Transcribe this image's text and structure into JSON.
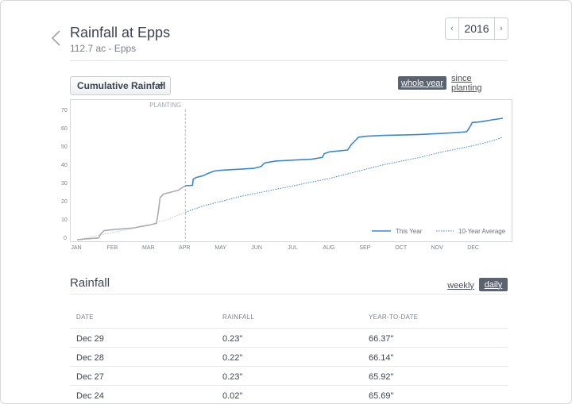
{
  "header": {
    "title": "Rainfall at Epps",
    "subtitle": "112.7 ac - Epps",
    "year": "2016",
    "prev_arrow": "‹",
    "next_arrow": "›"
  },
  "controls": {
    "metric_select": "Cumulative Rainfall",
    "range_options": [
      "whole year",
      "since planting"
    ],
    "range_selected": "whole year"
  },
  "chart_data": {
    "type": "line",
    "yticks": [
      0,
      10,
      20,
      30,
      40,
      50,
      60,
      70
    ],
    "ylim": [
      0,
      72
    ],
    "xticks": [
      "JAN",
      "FEB",
      "MAR",
      "APR",
      "MAY",
      "JUN",
      "JUL",
      "AUG",
      "SEP",
      "OCT",
      "NOV",
      "DEC"
    ],
    "annotation": "PLANTING",
    "planting_month": 3.0,
    "legend": [
      {
        "name": "This Year",
        "style": "solid",
        "color": "#3a86d6"
      },
      {
        "name": "10-Year Average",
        "style": "dotted",
        "color": "#3a86d6"
      }
    ],
    "pre_planting_color": "#a9acb1",
    "series": [
      {
        "name": "This Year",
        "x": [
          0,
          0.3,
          0.6,
          0.65,
          0.7,
          0.75,
          1.0,
          1.3,
          1.6,
          1.7,
          2.0,
          2.2,
          2.25,
          2.3,
          2.4,
          2.6,
          2.8,
          3.0,
          3.2,
          3.22,
          3.3,
          3.5,
          3.6,
          3.8,
          4.0,
          4.5,
          4.9,
          5.1,
          5.2,
          5.5,
          6.0,
          6.5,
          6.8,
          6.85,
          7.0,
          7.5,
          7.6,
          7.7,
          7.8,
          8.0,
          8.5,
          9.0,
          9.5,
          10.0,
          10.5,
          10.8,
          10.9,
          10.95,
          11.2,
          11.5,
          11.8
        ],
        "y": [
          0,
          0.5,
          1,
          3,
          4,
          5,
          5.5,
          6,
          6.5,
          7,
          8,
          9,
          15,
          23,
          25,
          26,
          27,
          29.5,
          29.7,
          33,
          34,
          35,
          36,
          37.5,
          38,
          38.5,
          39,
          40,
          42,
          43,
          43.5,
          44,
          45,
          47,
          48,
          49,
          52,
          54,
          56,
          56.5,
          57,
          57.2,
          57.5,
          58,
          58.5,
          59,
          62,
          64,
          64.5,
          65.5,
          66.37
        ]
      },
      {
        "name": "10-Year Average",
        "x": [
          0,
          0.5,
          1,
          1.5,
          2,
          2.5,
          3,
          3.5,
          4,
          4.5,
          5,
          5.5,
          6,
          6.5,
          7,
          7.5,
          8,
          8.5,
          9,
          9.5,
          10,
          10.5,
          11,
          11.5,
          11.8
        ],
        "y": [
          0,
          2,
          4,
          6,
          8,
          11,
          15,
          18.5,
          21,
          23.5,
          25.5,
          27.5,
          29.5,
          31.5,
          33.5,
          36,
          38.5,
          41,
          43,
          45,
          47.5,
          49.5,
          51.5,
          54,
          56
        ]
      }
    ]
  },
  "rainfall_section": {
    "title": "Rainfall",
    "view_options": [
      "weekly",
      "daily"
    ],
    "view_selected": "daily",
    "columns": [
      "DATE",
      "RAINFALL",
      "YEAR-TO-DATE"
    ],
    "rows": [
      {
        "date": "Dec 29",
        "rainfall": "0.23\"",
        "ytd": "66.37\""
      },
      {
        "date": "Dec 28",
        "rainfall": "0.22\"",
        "ytd": "66.14\""
      },
      {
        "date": "Dec 27",
        "rainfall": "0.23\"",
        "ytd": "65.92\""
      },
      {
        "date": "Dec 24",
        "rainfall": "0.02\"",
        "ytd": "65.69\""
      }
    ]
  }
}
